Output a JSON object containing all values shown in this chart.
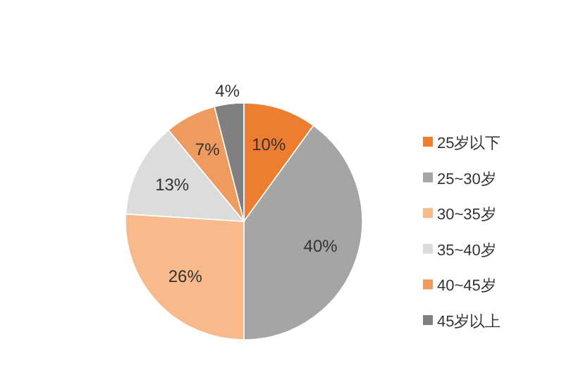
{
  "chart_data": {
    "type": "pie",
    "categories": [
      "25岁以下",
      "25~30岁",
      "30~35岁",
      "35~40岁",
      "40~45岁",
      "45岁以上"
    ],
    "values": [
      10,
      40,
      26,
      13,
      7,
      4
    ],
    "colors": [
      "#ed7d31",
      "#a5a5a5",
      "#f8b98b",
      "#dcdcdc",
      "#ef9a5e",
      "#808080"
    ],
    "value_labels": [
      "10%",
      "40%",
      "26%",
      "13%",
      "7%",
      "4%"
    ],
    "legend": "right"
  }
}
